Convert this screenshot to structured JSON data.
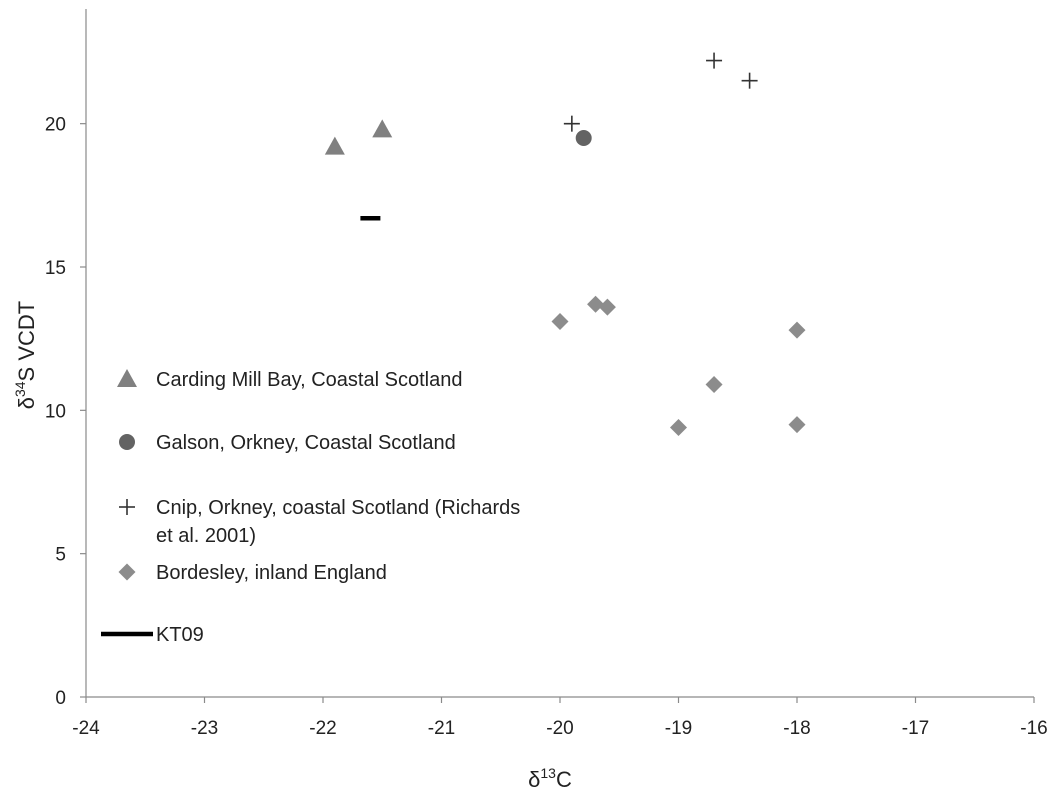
{
  "chart_data": {
    "type": "scatter",
    "xlabel": {
      "prefix": "δ",
      "sup": "13",
      "suffix": "C"
    },
    "ylabel": {
      "prefix": "δ",
      "sup": "34",
      "suffix": "S VCDT"
    },
    "xlim": [
      -24,
      -16
    ],
    "ylim": [
      0,
      24
    ],
    "x_ticks": [
      -24,
      -23,
      -22,
      -21,
      -20,
      -19,
      -18,
      -17,
      -16
    ],
    "y_ticks": [
      0,
      5,
      10,
      15,
      20
    ],
    "grid": false,
    "legend_position": "left",
    "series": [
      {
        "name": "Carding Mill Bay, Coastal Scotland",
        "marker": "triangle",
        "color": "#808080",
        "points": [
          {
            "x": -21.9,
            "y": 19.2
          },
          {
            "x": -21.5,
            "y": 19.8
          }
        ]
      },
      {
        "name": "Galson, Orkney, Coastal Scotland",
        "marker": "circle",
        "color": "#636363",
        "points": [
          {
            "x": -19.8,
            "y": 19.5
          }
        ]
      },
      {
        "name": "Cnip, Orkney, coastal Scotland (Richards et al. 2001)",
        "legend_lines": [
          "Cnip, Orkney, coastal Scotland (Richards",
          "et al. 2001)"
        ],
        "marker": "plus",
        "color": "#333333",
        "points": [
          {
            "x": -19.9,
            "y": 20.0
          },
          {
            "x": -18.7,
            "y": 22.2
          },
          {
            "x": -18.4,
            "y": 21.5
          }
        ]
      },
      {
        "name": "Bordesley, inland England",
        "marker": "diamond",
        "color": "#8c8c8c",
        "points": [
          {
            "x": -20.0,
            "y": 13.1
          },
          {
            "x": -19.7,
            "y": 13.7
          },
          {
            "x": -19.6,
            "y": 13.6
          },
          {
            "x": -18.0,
            "y": 12.8
          },
          {
            "x": -18.7,
            "y": 10.9
          },
          {
            "x": -19.0,
            "y": 9.4
          },
          {
            "x": -18.0,
            "y": 9.5
          }
        ]
      },
      {
        "name": "KT09",
        "marker": "dash",
        "color": "#000000",
        "points": [
          {
            "x": -21.6,
            "y": 16.7
          }
        ]
      }
    ]
  }
}
